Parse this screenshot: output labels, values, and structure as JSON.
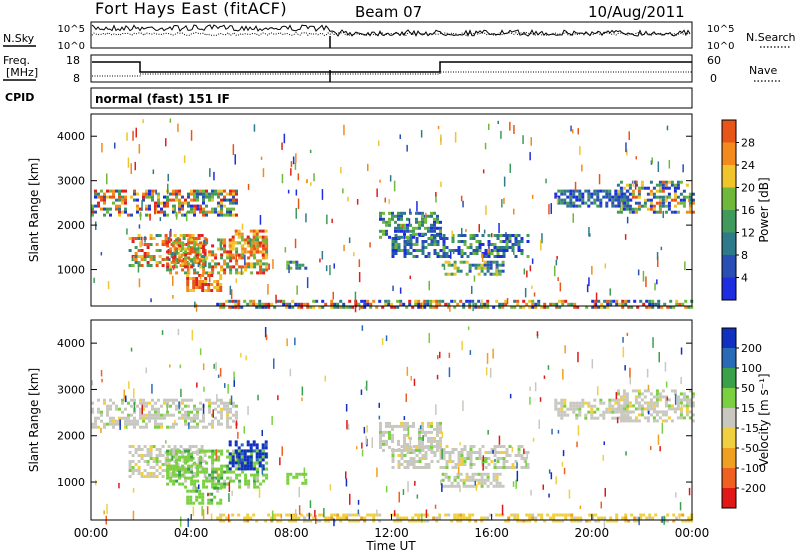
{
  "header": {
    "station": "Fort Hays East (fitACF)",
    "beam": "Beam 07",
    "date": "10/Aug/2011"
  },
  "top_panels": {
    "nsky_label": "N.Sky",
    "nsearch_label": "N.Search",
    "nsky_ticks": [
      "10^5",
      "10^0"
    ],
    "nsearch_ticks": [
      "10^5",
      "10^0"
    ],
    "freq_label_1": "Freq.",
    "freq_label_2": "[MHz]",
    "freq_ticks": [
      "18",
      "8"
    ],
    "nave_label": "Nave",
    "nave_ticks": [
      "60",
      "0"
    ],
    "cpid_label": "CPID",
    "cpid_text": "normal (fast) 151 IF"
  },
  "chart_data": [
    {
      "type": "heatmap",
      "name": "power",
      "ylabel": "Slant Range [km]",
      "xlabel": "",
      "ylim": [
        180,
        4500
      ],
      "yticks": [
        "1000",
        "2000",
        "3000",
        "4000"
      ],
      "colorbar_label": "Power [dB]",
      "colorbar_ticks": [
        "4",
        "8",
        "12",
        "16",
        "20",
        "24",
        "28"
      ],
      "colors": [
        "#1e2de0",
        "#2a4fb4",
        "#2e7a8a",
        "#3f9a5c",
        "#6fb83a",
        "#f0c42a",
        "#f28a1e",
        "#e85518",
        "#e0201c"
      ]
    },
    {
      "type": "heatmap",
      "name": "velocity",
      "ylabel": "Slant Range [km]",
      "xlabel": "Time UT",
      "ylim": [
        180,
        4500
      ],
      "yticks": [
        "1000",
        "2000",
        "3000",
        "4000"
      ],
      "xticks": [
        "00:00",
        "04:00",
        "08:00",
        "12:00",
        "16:00",
        "20:00",
        "00:00"
      ],
      "colorbar_label": "Velocity [m s⁻¹]",
      "colorbar_ticks": [
        "200",
        "100",
        "50",
        "15",
        "-15",
        "-50",
        "-100",
        "-200"
      ],
      "colors": [
        "#1030c0",
        "#2a6bb8",
        "#3aa04a",
        "#7ad040",
        "#c8c8c0",
        "#f0d040",
        "#f0a020",
        "#f06020",
        "#e01818"
      ]
    }
  ]
}
